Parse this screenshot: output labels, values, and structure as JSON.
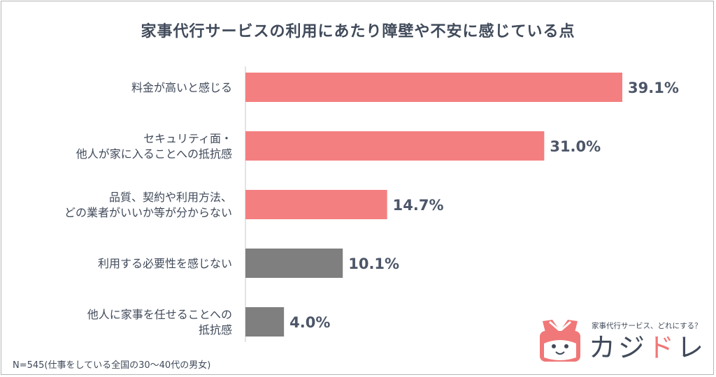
{
  "chart_data": {
    "type": "bar",
    "orientation": "horizontal",
    "title": "家事代行サービスの利用にあたり障壁や不安に感じている点",
    "categories": [
      [
        "料金が高いと感じる"
      ],
      [
        "セキュリティ面・",
        "他人が家に入ることへの抵抗感"
      ],
      [
        "品質、契約や利用方法、",
        "どの業者がいいか等が分からない"
      ],
      [
        "利用する必要性を感じない"
      ],
      [
        "他人に家事を任せることへの",
        "抵抗感"
      ]
    ],
    "values": [
      39.1,
      31.0,
      14.7,
      10.1,
      4.0
    ],
    "value_labels": [
      "39.1%",
      "31.0%",
      "14.7%",
      "10.1%",
      "4.0%"
    ],
    "bar_colors": [
      "#f47f80",
      "#f47f80",
      "#f47f80",
      "#7f7f7f",
      "#7f7f7f"
    ],
    "xlim": [
      0,
      39.1
    ],
    "grid": false,
    "legend": "none"
  },
  "footnote": "N=545(仕事をしている全国の30〜40代の男女)",
  "logo": {
    "tagline": "家事代行サービス、どれにする？",
    "name_main": "カジ",
    "name_accent": "ド",
    "name_end": "レ",
    "icon": "kajidore-mascot-icon"
  },
  "colors": {
    "accent": "#f47f80",
    "gray": "#7f7f7f",
    "text": "#404a5a"
  }
}
